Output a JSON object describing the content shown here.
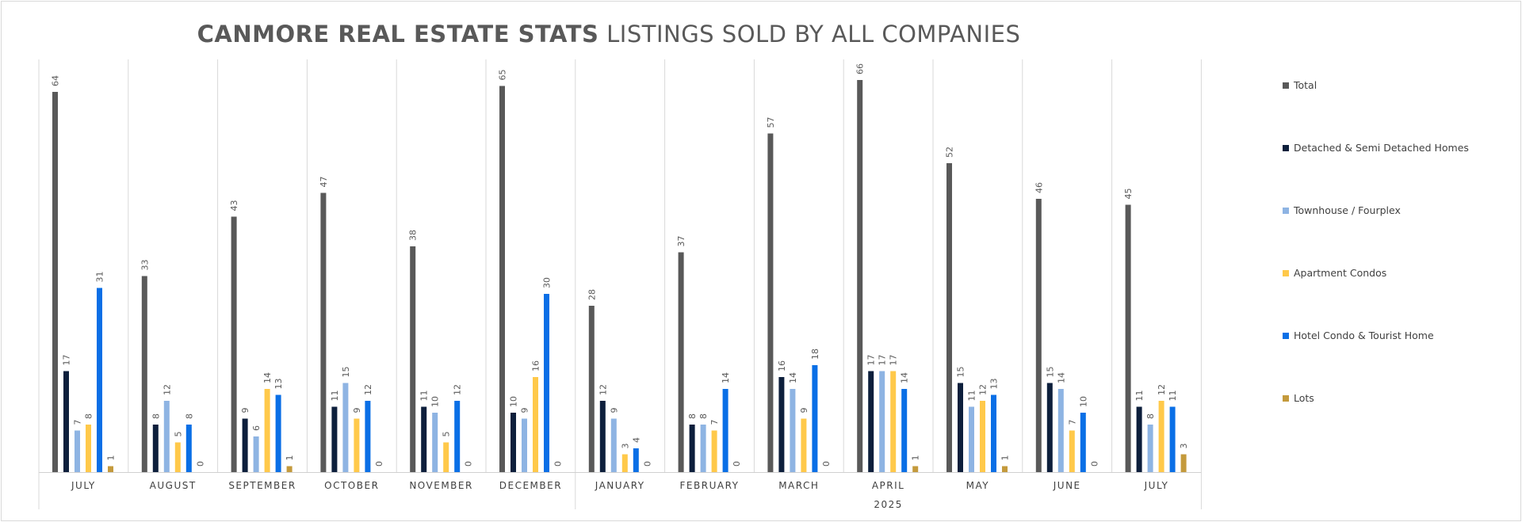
{
  "chart_data": {
    "type": "bar",
    "title_bold": "CANMORE REAL ESTATE STATS",
    "title_rest": "LISTINGS SOLD BY ALL COMPANIES",
    "categories": [
      "JULY",
      "AUGUST",
      "SEPTEMBER",
      "OCTOBER",
      "NOVEMBER",
      "DECEMBER",
      "JANUARY",
      "FEBRUARY",
      "MARCH",
      "APRIL",
      "MAY",
      "JUNE",
      "JULY"
    ],
    "year_groups": [
      {
        "label": "",
        "start": 0,
        "end": 5
      },
      {
        "label": "2025",
        "start": 6,
        "end": 12
      }
    ],
    "series": [
      {
        "name": "Total",
        "color": "#595959",
        "values": [
          64,
          33,
          43,
          47,
          38,
          65,
          28,
          37,
          57,
          66,
          52,
          46,
          45
        ]
      },
      {
        "name": "Detached & Semi Detached Homes",
        "color": "#0d1f3c",
        "values": [
          17,
          8,
          9,
          11,
          11,
          10,
          12,
          8,
          16,
          17,
          15,
          15,
          11
        ]
      },
      {
        "name": "Townhouse / Fourplex",
        "color": "#8eb4e3",
        "values": [
          7,
          12,
          6,
          15,
          10,
          9,
          9,
          8,
          14,
          17,
          11,
          14,
          8
        ]
      },
      {
        "name": "Apartment Condos",
        "color": "#ffc94a",
        "values": [
          8,
          5,
          14,
          9,
          5,
          16,
          3,
          7,
          9,
          17,
          12,
          7,
          12
        ]
      },
      {
        "name": "Hotel Condo & Tourist Home",
        "color": "#0a6fe6",
        "values": [
          31,
          8,
          13,
          12,
          12,
          30,
          4,
          14,
          18,
          14,
          13,
          10,
          11
        ]
      },
      {
        "name": "Lots",
        "color": "#c49a3c",
        "values": [
          1,
          0,
          1,
          0,
          0,
          0,
          0,
          0,
          0,
          1,
          1,
          0,
          3
        ]
      }
    ],
    "ylim": [
      0,
      70
    ],
    "grid": "vertical category separators",
    "legend_position": "right",
    "data_labels": true
  }
}
